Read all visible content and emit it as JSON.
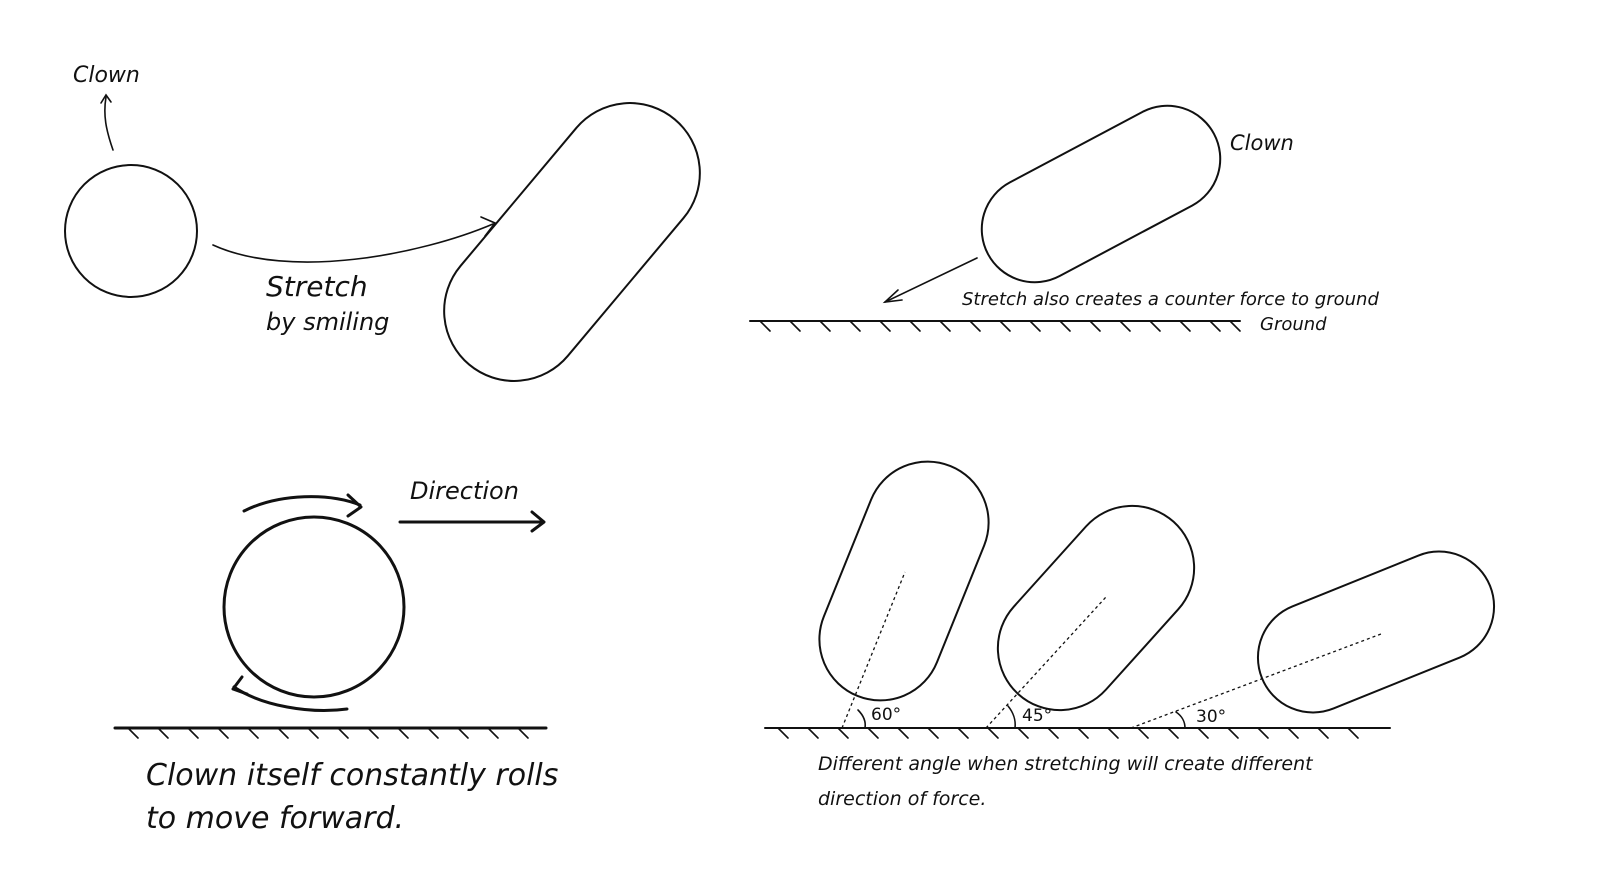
{
  "panel_stretch": {
    "clown_label": "Clown",
    "caption_line1": "Stretch",
    "caption_line2": "by smiling"
  },
  "panel_ground_force": {
    "clown_label": "Clown",
    "force_label": "Stretch also creates a counter force to ground",
    "ground_label": "Ground"
  },
  "panel_rolling": {
    "direction_label": "Direction",
    "caption_line1": "Clown itself constantly rolls",
    "caption_line2": "to move forward."
  },
  "panel_angles": {
    "angles": [
      "60°",
      "45°",
      "30°"
    ],
    "caption_line1": "Different angle when stretching will create different",
    "caption_line2": "direction of force."
  },
  "colors": {
    "ink": "#111111",
    "background": "#ffffff"
  }
}
